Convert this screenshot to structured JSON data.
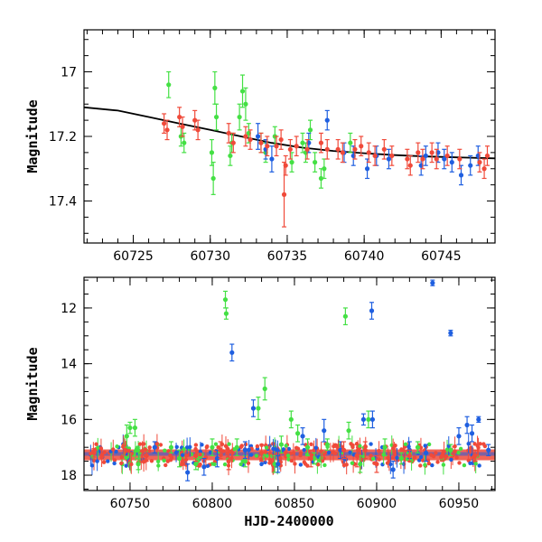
{
  "colors": {
    "green": "#44e044",
    "blue": "#1f5fe0",
    "red": "#f04a3a",
    "frame": "#000000",
    "model": "#000000"
  },
  "chart_data": [
    {
      "type": "scatter",
      "title": "",
      "xlabel": "",
      "ylabel": "Magnitude",
      "xlim": [
        60721.8,
        60748.5
      ],
      "ylim": [
        17.53,
        16.87
      ],
      "yinverted": true,
      "xticks": [
        60725,
        60730,
        60735,
        60740,
        60745
      ],
      "xtick_labels": [
        "60725",
        "60730",
        "60735",
        "60740",
        "60745"
      ],
      "yticks": [
        17,
        17.2,
        17.4
      ],
      "ytick_labels": [
        "17",
        "17.2",
        "17.4"
      ],
      "model_curve": {
        "x": [
          60721.8,
          60724,
          60726,
          60728,
          60730,
          60732,
          60734,
          60736,
          60738,
          60740,
          60742,
          60744,
          60746,
          60748.5
        ],
        "y": [
          17.11,
          17.12,
          17.14,
          17.16,
          17.18,
          17.2,
          17.22,
          17.235,
          17.245,
          17.252,
          17.258,
          17.262,
          17.265,
          17.268
        ]
      },
      "series": [
        {
          "name": "green",
          "points": [
            [
              60727.3,
              17.04,
              0.04
            ],
            [
              60728.1,
              17.2,
              0.03
            ],
            [
              60728.3,
              17.22,
              0.03
            ],
            [
              60730.1,
              17.25,
              0.04
            ],
            [
              60730.2,
              17.33,
              0.05
            ],
            [
              60730.3,
              17.05,
              0.05
            ],
            [
              60730.4,
              17.14,
              0.04
            ],
            [
              60731.3,
              17.26,
              0.03
            ],
            [
              60731.4,
              17.22,
              0.03
            ],
            [
              60731.9,
              17.14,
              0.04
            ],
            [
              60732.1,
              17.06,
              0.05
            ],
            [
              60732.3,
              17.1,
              0.05
            ],
            [
              60732.5,
              17.19,
              0.03
            ],
            [
              60733.3,
              17.22,
              0.03
            ],
            [
              60733.6,
              17.25,
              0.03
            ],
            [
              60734.2,
              17.2,
              0.03
            ],
            [
              60735.3,
              17.28,
              0.03
            ],
            [
              60736.0,
              17.22,
              0.03
            ],
            [
              60736.2,
              17.25,
              0.03
            ],
            [
              60736.5,
              17.18,
              0.03
            ],
            [
              60736.8,
              17.28,
              0.03
            ],
            [
              60737.2,
              17.33,
              0.03
            ],
            [
              60737.4,
              17.3,
              0.03
            ],
            [
              60739.1,
              17.22,
              0.03
            ]
          ]
        },
        {
          "name": "blue",
          "points": [
            [
              60733.1,
              17.2,
              0.04
            ],
            [
              60733.6,
              17.24,
              0.03
            ],
            [
              60734.0,
              17.27,
              0.04
            ],
            [
              60736.4,
              17.22,
              0.03
            ],
            [
              60737.6,
              17.15,
              0.03
            ],
            [
              60738.7,
              17.25,
              0.03
            ],
            [
              60739.3,
              17.26,
              0.03
            ],
            [
              60740.2,
              17.3,
              0.03
            ],
            [
              60740.8,
              17.26,
              0.03
            ],
            [
              60741.6,
              17.27,
              0.03
            ],
            [
              60743.7,
              17.29,
              0.03
            ],
            [
              60744.0,
              17.26,
              0.03
            ],
            [
              60744.8,
              17.25,
              0.03
            ],
            [
              60745.2,
              17.27,
              0.03
            ],
            [
              60745.7,
              17.28,
              0.03
            ],
            [
              60746.3,
              17.32,
              0.03
            ],
            [
              60746.9,
              17.29,
              0.03
            ],
            [
              60747.4,
              17.26,
              0.03
            ]
          ]
        },
        {
          "name": "red",
          "points": [
            [
              60727.0,
              17.16,
              0.03
            ],
            [
              60727.2,
              17.18,
              0.03
            ],
            [
              60728.0,
              17.14,
              0.03
            ],
            [
              60728.2,
              17.17,
              0.03
            ],
            [
              60729.0,
              17.15,
              0.03
            ],
            [
              60729.2,
              17.18,
              0.03
            ],
            [
              60731.2,
              17.19,
              0.03
            ],
            [
              60731.5,
              17.22,
              0.03
            ],
            [
              60732.3,
              17.2,
              0.03
            ],
            [
              60732.6,
              17.21,
              0.03
            ],
            [
              60733.3,
              17.22,
              0.03
            ],
            [
              60733.7,
              17.23,
              0.03
            ],
            [
              60734.3,
              17.23,
              0.03
            ],
            [
              60734.6,
              17.21,
              0.03
            ],
            [
              60734.8,
              17.38,
              0.1
            ],
            [
              60734.9,
              17.29,
              0.03
            ],
            [
              60735.2,
              17.24,
              0.03
            ],
            [
              60735.6,
              17.23,
              0.03
            ],
            [
              60736.3,
              17.24,
              0.03
            ],
            [
              60737.2,
              17.22,
              0.03
            ],
            [
              60737.6,
              17.24,
              0.03
            ],
            [
              60738.3,
              17.24,
              0.03
            ],
            [
              60738.6,
              17.25,
              0.03
            ],
            [
              60739.4,
              17.24,
              0.03
            ],
            [
              60739.8,
              17.23,
              0.03
            ],
            [
              60740.3,
              17.25,
              0.03
            ],
            [
              60740.7,
              17.26,
              0.03
            ],
            [
              60741.3,
              17.24,
              0.03
            ],
            [
              60741.8,
              17.26,
              0.03
            ],
            [
              60742.8,
              17.27,
              0.03
            ],
            [
              60743.0,
              17.29,
              0.03
            ],
            [
              60743.5,
              17.25,
              0.03
            ],
            [
              60743.8,
              17.27,
              0.03
            ],
            [
              60744.4,
              17.25,
              0.03
            ],
            [
              60744.7,
              17.27,
              0.03
            ],
            [
              60745.4,
              17.26,
              0.03
            ],
            [
              60746.2,
              17.27,
              0.03
            ],
            [
              60747.5,
              17.28,
              0.03
            ],
            [
              60747.8,
              17.3,
              0.03
            ],
            [
              60748.0,
              17.26,
              0.03
            ]
          ]
        }
      ]
    },
    {
      "type": "scatter",
      "title": "",
      "xlabel": "HJD-2400000",
      "ylabel": "Magnitude",
      "xlim": [
        60722,
        60972
      ],
      "ylim": [
        18.55,
        10.9
      ],
      "yinverted": true,
      "xticks": [
        60750,
        60800,
        60850,
        60900,
        60950
      ],
      "xtick_labels": [
        "60750",
        "60800",
        "60850",
        "60900",
        "60950"
      ],
      "yticks": [
        12,
        14,
        16,
        18
      ],
      "ytick_labels": [
        "12",
        "14",
        "16",
        "18"
      ],
      "baseline_magnitude": 17.27,
      "baseline_x_range": [
        60722,
        60972
      ],
      "series": [
        {
          "name": "green",
          "points": [
            [
              60748,
              16.6,
              0.4
            ],
            [
              60750,
              16.3,
              0.2
            ],
            [
              60753,
              16.3,
              0.3
            ],
            [
              60755,
              17.6,
              0.2
            ],
            [
              60775,
              17.0,
              0.2
            ],
            [
              60780,
              17.4,
              0.3
            ],
            [
              60790,
              17.6,
              0.2
            ],
            [
              60800,
              17.0,
              0.3
            ],
            [
              60808,
              11.7,
              0.3
            ],
            [
              60808.5,
              12.2,
              0.2
            ],
            [
              60815,
              17.0,
              0.3
            ],
            [
              60820,
              17.5,
              0.2
            ],
            [
              60828,
              15.6,
              0.4
            ],
            [
              60832,
              14.9,
              0.4
            ],
            [
              60838,
              17.6,
              0.3
            ],
            [
              60842,
              16.9,
              0.3
            ],
            [
              60848,
              16.0,
              0.3
            ],
            [
              60852,
              16.5,
              0.3
            ],
            [
              60858,
              17.0,
              0.3
            ],
            [
              60862,
              17.4,
              0.2
            ],
            [
              60870,
              16.9,
              0.2
            ],
            [
              60881,
              12.3,
              0.3
            ],
            [
              60883,
              16.4,
              0.3
            ],
            [
              60890,
              17.6,
              0.3
            ],
            [
              60895,
              16.0,
              0.3
            ],
            [
              60905,
              17.0,
              0.3
            ],
            [
              60915,
              17.4,
              0.2
            ],
            [
              60925,
              17.0,
              0.2
            ],
            [
              60945,
              17.1,
              0.2
            ]
          ]
        },
        {
          "name": "blue",
          "points": [
            [
              60765,
              17.0,
              0.2
            ],
            [
              60785,
              17.9,
              0.3
            ],
            [
              60795,
              17.7,
              0.3
            ],
            [
              60803,
              17.4,
              0.3
            ],
            [
              60812,
              13.6,
              0.3
            ],
            [
              60820,
              17.1,
              0.3
            ],
            [
              60825,
              15.6,
              0.3
            ],
            [
              60840,
              17.6,
              0.3
            ],
            [
              60855,
              16.6,
              0.3
            ],
            [
              60868,
              16.4,
              0.4
            ],
            [
              60878,
              17.1,
              0.3
            ],
            [
              60892,
              16.0,
              0.2
            ],
            [
              60897,
              12.1,
              0.3
            ],
            [
              60897.5,
              16.0,
              0.3
            ],
            [
              60910,
              17.8,
              0.3
            ],
            [
              60920,
              17.1,
              0.3
            ],
            [
              60930,
              17.2,
              0.3
            ],
            [
              60934,
              11.1,
              0.1
            ],
            [
              60945,
              12.9,
              0.1
            ],
            [
              60950,
              16.6,
              0.3
            ],
            [
              60955,
              16.2,
              0.3
            ],
            [
              60958,
              16.5,
              0.3
            ],
            [
              60962,
              16.0,
              0.1
            ],
            [
              60968,
              17.1,
              0.2
            ]
          ]
        },
        {
          "name": "red",
          "points": [
            [
              60728,
              17.2,
              0.15
            ],
            [
              60760,
              17.3,
              0.2
            ],
            [
              60790,
              17.3,
              0.2
            ],
            [
              60805,
              17.1,
              0.3
            ],
            [
              60810,
              17.5,
              0.3
            ],
            [
              60830,
              17.2,
              0.3
            ],
            [
              60860,
              17.4,
              0.3
            ],
            [
              60880,
              17.1,
              0.3
            ],
            [
              60888,
              17.3,
              0.4
            ],
            [
              60893,
              17.1,
              0.3
            ],
            [
              60900,
              17.6,
              0.3
            ],
            [
              60920,
              17.3,
              0.2
            ],
            [
              60940,
              17.3,
              0.2
            ],
            [
              60960,
              17.3,
              0.2
            ]
          ]
        }
      ]
    }
  ]
}
